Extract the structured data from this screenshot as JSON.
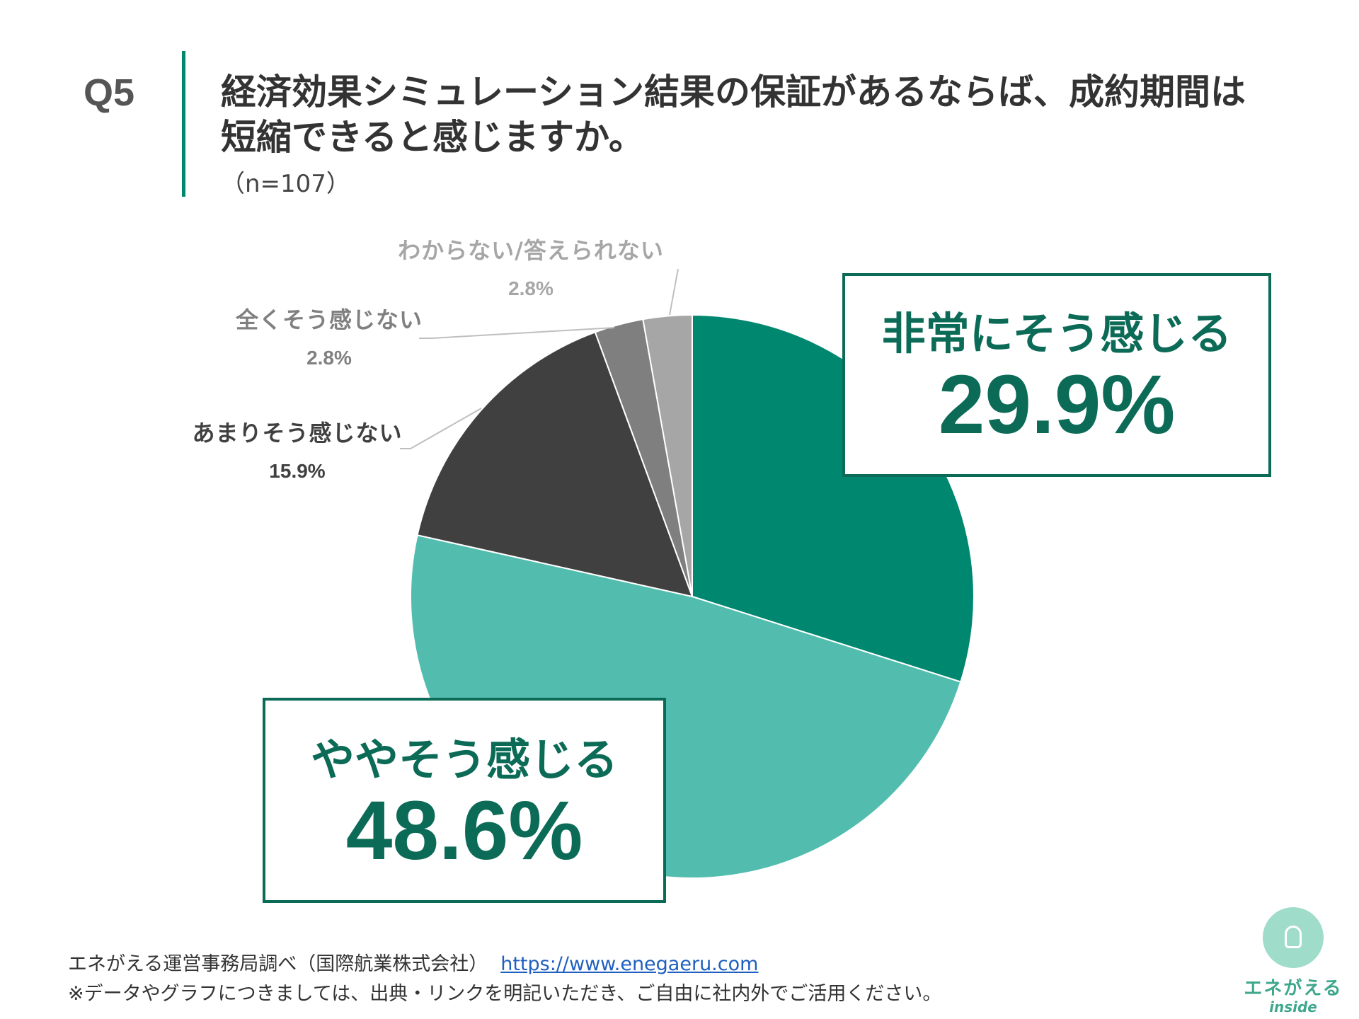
{
  "header": {
    "question_no": "Q5",
    "title_line1": "経済効果シミュレーション結果の保証があるならば、成約期間は",
    "title_line2": "短縮できると感じますか。",
    "sample_size": "（n=107）"
  },
  "chart_data": {
    "type": "pie",
    "start_angle_deg": 0,
    "direction": "clockwise",
    "slices": [
      {
        "label": "非常にそう感じる",
        "value": 29.9,
        "value_label": "29.9%",
        "color": "#00876f"
      },
      {
        "label": "ややそう感じる",
        "value": 48.6,
        "value_label": "48.6%",
        "color": "#52bdae"
      },
      {
        "label": "あまりそう感じない",
        "value": 15.9,
        "value_label": "15.9%",
        "color": "#404040"
      },
      {
        "label": "全くそう感じない",
        "value": 2.8,
        "value_label": "2.8%",
        "color": "#7f7f7f"
      },
      {
        "label": "わからない/答えられない",
        "value": 2.8,
        "value_label": "2.8%",
        "color": "#a6a6a6"
      }
    ]
  },
  "colors": {
    "accent": "#00876f",
    "callout_border": "#0c6b57",
    "leader_line": "#bfbfbf"
  },
  "footer": {
    "source": "エネがえる運営事務局調べ（国際航業株式会社）",
    "url": "https://www.enegaeru.com",
    "note": "※データやグラフにつきましては、出典・リンクを明記いただき、ご自由に社内外でご活用ください。"
  },
  "logo": {
    "name": "エネがえる",
    "sub": "inside",
    "icon": "lightbulb-icon"
  }
}
